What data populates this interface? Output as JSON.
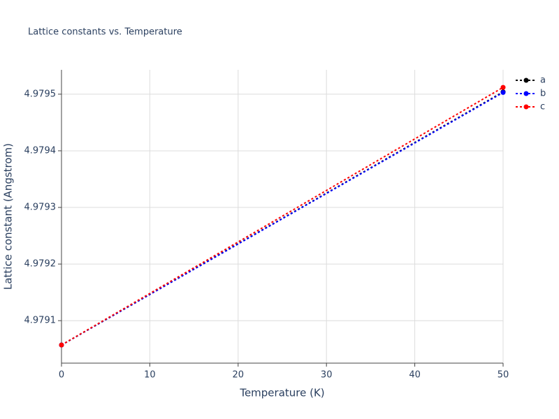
{
  "chart_data": {
    "type": "line",
    "title": "Lattice constants vs. Temperature",
    "x_label": "Temperature (K)",
    "y_label": "Lattice constant (Angstrom)",
    "x": [
      0,
      50
    ],
    "series": [
      {
        "name": "a",
        "color": "#000000",
        "values": [
          4.979057,
          4.979504
        ]
      },
      {
        "name": "b",
        "color": "#0000ff",
        "values": [
          4.979057,
          4.979503
        ]
      },
      {
        "name": "c",
        "color": "#ff0000",
        "values": [
          4.979057,
          4.979512
        ]
      }
    ],
    "xlim": [
      0,
      50
    ],
    "xticks": [
      0,
      10,
      20,
      30,
      40,
      50
    ],
    "ylim": [
      4.979025,
      4.979543
    ],
    "yticks": [
      4.9791,
      4.9792,
      4.9793,
      4.9794,
      4.9795
    ],
    "grid": true,
    "legend": "right"
  }
}
